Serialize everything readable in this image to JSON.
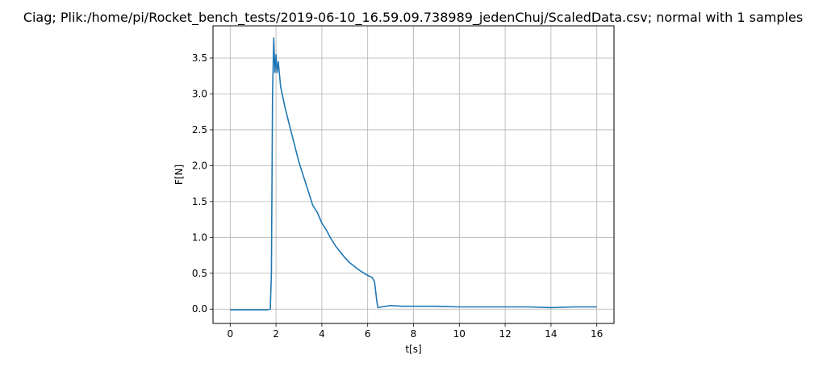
{
  "chart_data": {
    "type": "line",
    "title": "Ciag; Plik:/home/pi/Rocket_bench_tests/2019-06-10_16.59.09.738989_jedenChuj/ScaledData.csv; normal with 1 samples",
    "xlabel": "t[s]",
    "ylabel": "F[N]",
    "xlim": [
      -0.75,
      16.75
    ],
    "ylim": [
      -0.2,
      3.95
    ],
    "grid": true,
    "xticks": [
      0,
      2,
      4,
      6,
      8,
      10,
      12,
      14,
      16
    ],
    "xtick_labels": [
      "0",
      "2",
      "4",
      "6",
      "8",
      "10",
      "12",
      "14",
      "16"
    ],
    "yticks": [
      0.0,
      0.5,
      1.0,
      1.5,
      2.0,
      2.5,
      3.0,
      3.5
    ],
    "ytick_labels": [
      "0.0",
      "0.5",
      "1.0",
      "1.5",
      "2.0",
      "2.5",
      "3.0",
      "3.5"
    ],
    "series_color": "#1f77b4",
    "series": [
      {
        "x": [
          0,
          0.4,
          0.8,
          1.2,
          1.6,
          1.75,
          1.8,
          1.85,
          1.9,
          1.95,
          2.0,
          2.05,
          2.1,
          2.2,
          2.4,
          2.6,
          2.8,
          3.0,
          3.2,
          3.4,
          3.6,
          3.8,
          4.0,
          4.2,
          4.4,
          4.6,
          4.8,
          5.0,
          5.2,
          5.4,
          5.6,
          5.8,
          6.0,
          6.2,
          6.3,
          6.35,
          6.4,
          6.45,
          6.6,
          7.0,
          7.5,
          8.0,
          9.0,
          10.0,
          11.0,
          12.0,
          13.0,
          14.0,
          15.0,
          16.0
        ],
        "y": [
          -0.01,
          -0.01,
          -0.01,
          -0.01,
          -0.01,
          0.0,
          0.5,
          3.0,
          3.78,
          3.3,
          3.55,
          3.3,
          3.45,
          3.1,
          2.8,
          2.55,
          2.3,
          2.05,
          1.85,
          1.65,
          1.45,
          1.35,
          1.2,
          1.1,
          0.98,
          0.88,
          0.8,
          0.72,
          0.65,
          0.6,
          0.55,
          0.51,
          0.47,
          0.44,
          0.38,
          0.25,
          0.1,
          0.02,
          0.03,
          0.05,
          0.04,
          0.04,
          0.04,
          0.03,
          0.03,
          0.03,
          0.03,
          0.02,
          0.03,
          0.03
        ]
      }
    ]
  }
}
